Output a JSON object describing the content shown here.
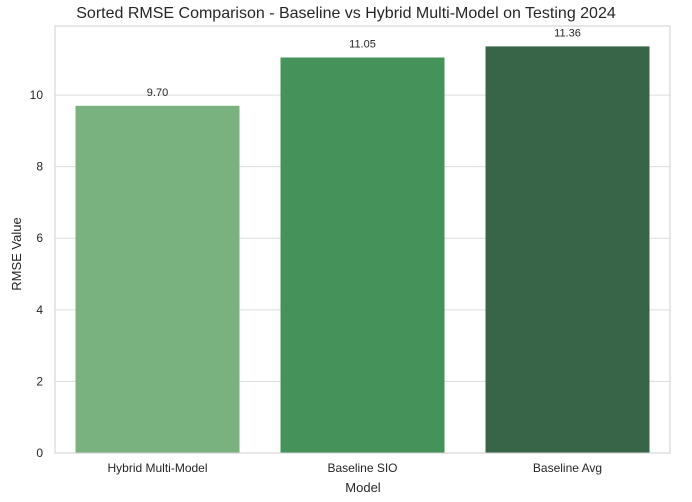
{
  "chart_data": {
    "type": "bar",
    "title": "Sorted RMSE Comparison - Baseline vs Hybrid Multi-Model on Testing 2024",
    "xlabel": "Model",
    "ylabel": "RMSE Value",
    "categories": [
      "Hybrid Multi-Model",
      "Baseline SIO",
      "Baseline Avg"
    ],
    "values": [
      9.7,
      11.05,
      11.36
    ],
    "value_labels": [
      "9.70",
      "11.05",
      "11.36"
    ],
    "colors": [
      "#7ab27f",
      "#45935a",
      "#386447"
    ],
    "ylim": [
      0,
      11.93
    ],
    "yticks": [
      0,
      2,
      4,
      6,
      8,
      10
    ],
    "ytick_labels": [
      "0",
      "2",
      "4",
      "6",
      "8",
      "10"
    ],
    "grid": "horizontal",
    "legend": "none"
  }
}
